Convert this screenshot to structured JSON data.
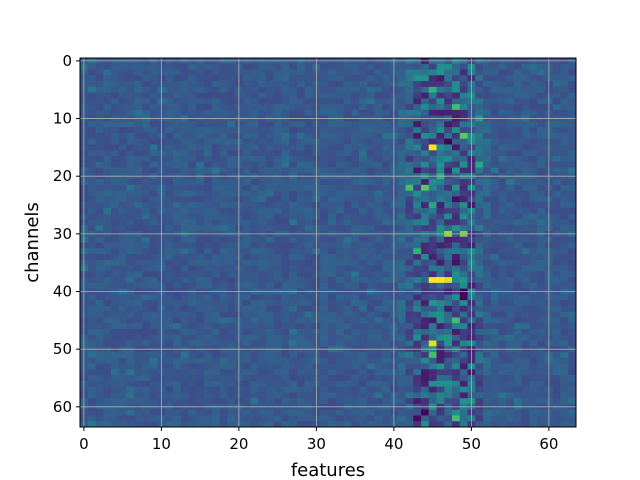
{
  "chart_data": {
    "type": "heatmap",
    "title": "",
    "xlabel": "features",
    "ylabel": "channels",
    "xlim": [
      -0.5,
      63.5
    ],
    "ylim": [
      63.5,
      -0.5
    ],
    "xticks": [
      0,
      10,
      20,
      30,
      40,
      50,
      60
    ],
    "yticks": [
      0,
      10,
      20,
      30,
      40,
      50,
      60
    ],
    "grid": true,
    "colormap": "viridis",
    "rows": 64,
    "cols": 64,
    "value_range": [
      0,
      1
    ],
    "background_level": 0.28,
    "active_band_columns": [
      41,
      52
    ],
    "highlights": [
      {
        "row": 15,
        "col": 45,
        "value": 1.0
      },
      {
        "row": 38,
        "col": 45,
        "value": 1.0
      },
      {
        "row": 38,
        "col": 46,
        "value": 1.0
      },
      {
        "row": 38,
        "col": 47,
        "value": 0.95
      },
      {
        "row": 49,
        "col": 45,
        "value": 0.95
      },
      {
        "row": 30,
        "col": 47,
        "value": 0.85
      },
      {
        "row": 30,
        "col": 49,
        "value": 0.8
      },
      {
        "row": 13,
        "col": 49,
        "value": 0.75
      },
      {
        "row": 8,
        "col": 48,
        "value": 0.7
      },
      {
        "row": 5,
        "col": 45,
        "value": 0.65
      },
      {
        "row": 22,
        "col": 42,
        "value": 0.7
      },
      {
        "row": 22,
        "col": 44,
        "value": 0.75
      },
      {
        "row": 45,
        "col": 48,
        "value": 0.7
      },
      {
        "row": 51,
        "col": 45,
        "value": 0.7
      },
      {
        "row": 62,
        "col": 48,
        "value": 0.7
      },
      {
        "row": 33,
        "col": 43,
        "value": 0.65
      },
      {
        "row": 20,
        "col": 46,
        "value": 0.65
      },
      {
        "row": 25,
        "col": 45,
        "value": 0.6
      },
      {
        "row": 18,
        "col": 51,
        "value": 0.6
      },
      {
        "row": 10,
        "col": 51,
        "value": 0.55
      }
    ],
    "lowlights": [
      {
        "row": 14,
        "col": 47,
        "value": 0.0
      },
      {
        "row": 40,
        "col": 49,
        "value": 0.0
      },
      {
        "row": 41,
        "col": 49,
        "value": 0.02
      },
      {
        "row": 61,
        "col": 44,
        "value": 0.02
      },
      {
        "row": 62,
        "col": 43,
        "value": 0.03
      },
      {
        "row": 24,
        "col": 48,
        "value": 0.05
      },
      {
        "row": 3,
        "col": 46,
        "value": 0.08
      },
      {
        "row": 11,
        "col": 43,
        "value": 0.08
      },
      {
        "row": 35,
        "col": 48,
        "value": 0.05
      },
      {
        "row": 55,
        "col": 44,
        "value": 0.08
      }
    ]
  },
  "x_tick_labels": [
    "0",
    "10",
    "20",
    "30",
    "40",
    "50",
    "60"
  ],
  "y_tick_labels": [
    "0",
    "10",
    "20",
    "30",
    "40",
    "50",
    "60"
  ]
}
